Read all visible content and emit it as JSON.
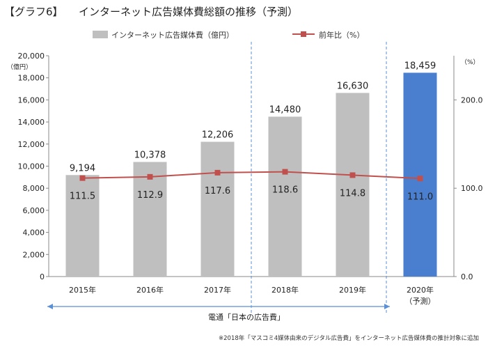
{
  "page": {
    "title": "【グラフ6】　　インターネット広告媒体費総額の推移（予測）",
    "footnote": "※2018年「マスコミ4媒体由来のデジタル広告費」をインターネット広告媒体費の推計対象に追加",
    "source_label": "電通「日本の広告費」"
  },
  "chart_data": {
    "type": "bar",
    "categories": [
      "2015年",
      "2016年",
      "2017年",
      "2018年",
      "2019年",
      "2020年"
    ],
    "category_sublabels": [
      "",
      "",
      "",
      "",
      "",
      "（予測）"
    ],
    "series": [
      {
        "name": "インターネット広告媒体費（億円）",
        "type": "bar",
        "axis": "left",
        "values": [
          9194,
          10378,
          12206,
          14480,
          16630,
          18459
        ],
        "value_labels": [
          "9,194",
          "10,378",
          "12,206",
          "14,480",
          "16,630",
          "18,459"
        ],
        "color": "#bfbfbf",
        "highlight_color": "#4a7fcf",
        "highlight_index": 5
      },
      {
        "name": "前年比（%）",
        "type": "line",
        "axis": "right",
        "values": [
          111.5,
          112.9,
          117.6,
          118.6,
          114.8,
          111.0
        ],
        "value_labels": [
          "111.5",
          "112.9",
          "117.6",
          "118.6",
          "114.8",
          "111.0"
        ],
        "color": "#c0504d"
      }
    ],
    "y_left": {
      "min": 0,
      "max": 20000,
      "ticks": [
        0,
        2000,
        4000,
        6000,
        8000,
        10000,
        12000,
        14000,
        16000,
        18000,
        20000
      ],
      "tick_labels": [
        "0",
        "2,000",
        "4,000",
        "6,000",
        "8,000",
        "10,000",
        "12,000",
        "14,000",
        "16,000",
        "18,000",
        "20,000"
      ],
      "unit": "（億円）"
    },
    "y_right": {
      "min": 0,
      "max": 250,
      "ticks": [
        0,
        100,
        200
      ],
      "tick_labels": [
        "0.0",
        "100.0",
        "200.0"
      ],
      "unit": "（%）"
    },
    "legend_position": "top-center",
    "grid": false
  }
}
